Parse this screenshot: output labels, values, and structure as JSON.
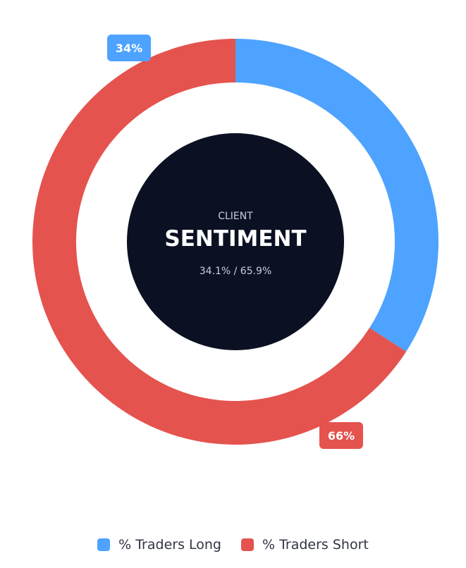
{
  "chart_data": {
    "type": "pie",
    "donut": true,
    "center": {
      "small_label": "CLIENT",
      "title": "SENTIMENT",
      "subtitle": "34.1% / 65.9%"
    },
    "series": [
      {
        "name": "% Traders Long",
        "value": 34.1,
        "label": "34%",
        "color": "#4da3ff"
      },
      {
        "name": "% Traders Short",
        "value": 65.9,
        "label": "66%",
        "color": "#e5534f"
      }
    ],
    "legend": {
      "position": "bottom"
    }
  },
  "colors": {
    "center_fill": "#0b1122",
    "center_text": "#ffffff",
    "center_muted_text": "#c6cfdd",
    "legend_text": "#2f3542"
  }
}
